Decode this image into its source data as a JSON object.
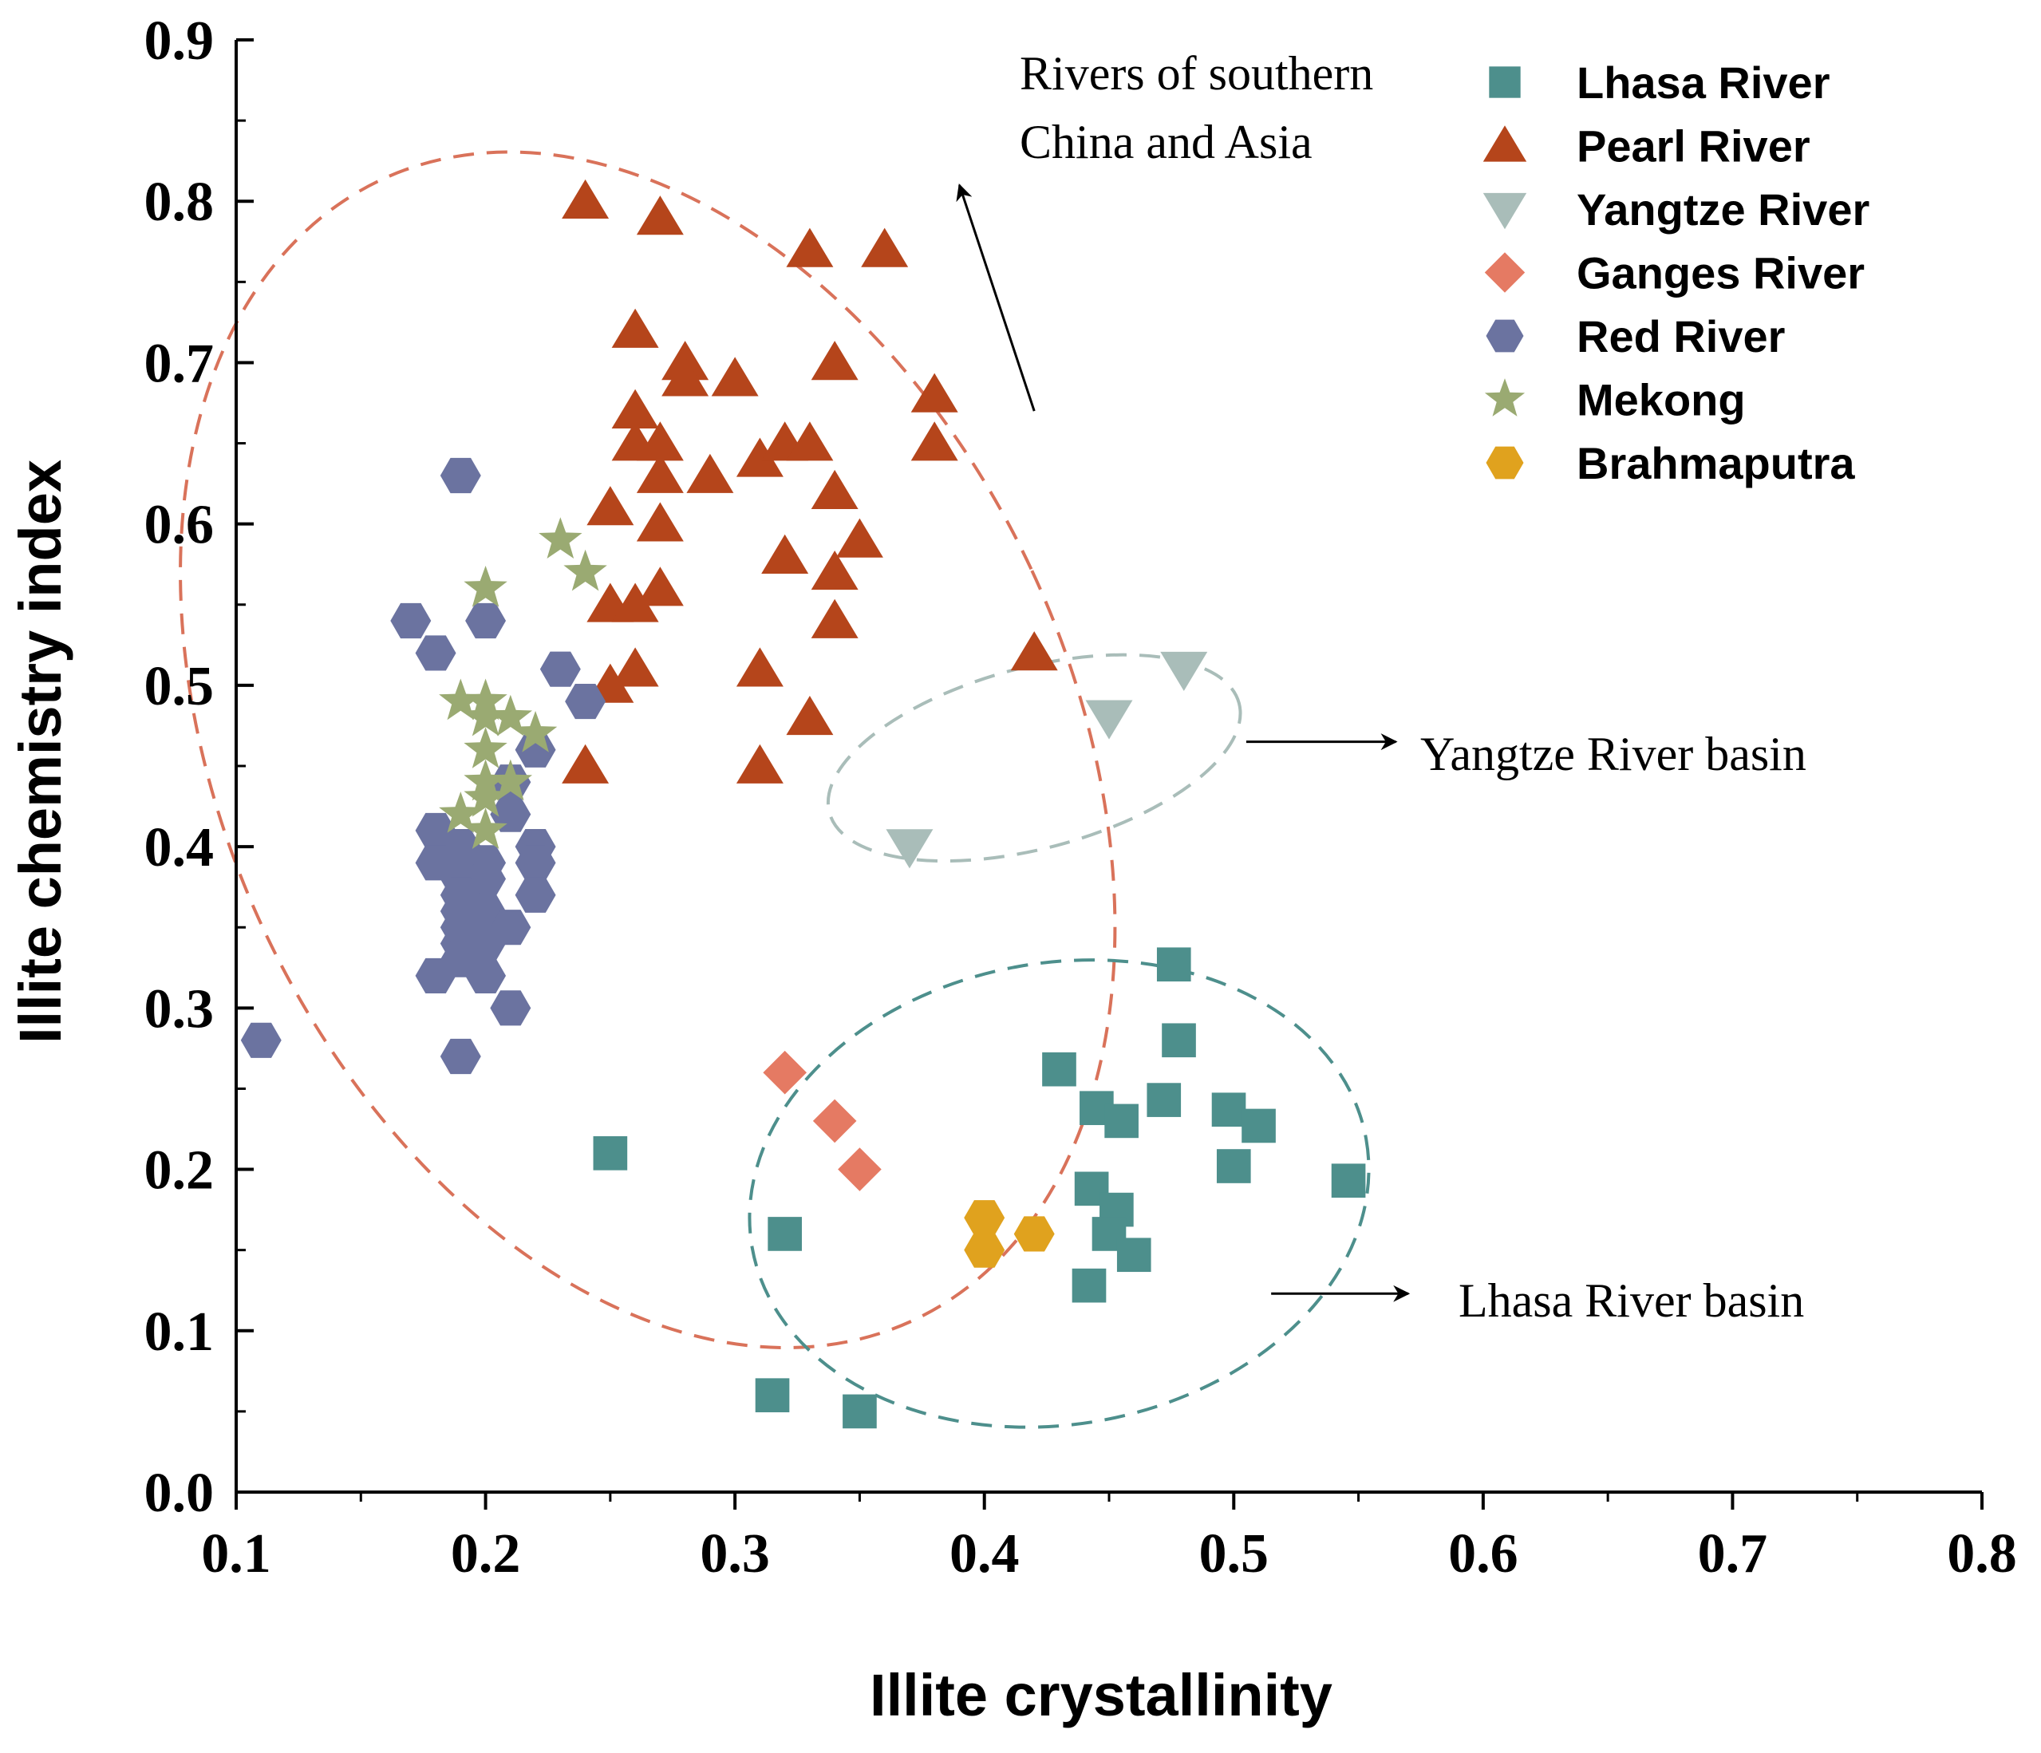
{
  "chart_data": {
    "type": "scatter",
    "title": "",
    "xlabel": "Illite crystallinity",
    "ylabel": "Illite chemistry index",
    "xlim": [
      0.1,
      0.8
    ],
    "ylim": [
      0.0,
      0.9
    ],
    "xticks": [
      0.1,
      0.2,
      0.3,
      0.4,
      0.5,
      0.6,
      0.7,
      0.8
    ],
    "yticks": [
      0.0,
      0.1,
      0.2,
      0.3,
      0.4,
      0.5,
      0.6,
      0.7,
      0.8,
      0.9
    ],
    "xtick_labels": [
      "0.1",
      "0.2",
      "0.3",
      "0.4",
      "0.5",
      "0.6",
      "0.7",
      "0.8"
    ],
    "ytick_labels": [
      "0.0",
      "0.1",
      "0.2",
      "0.3",
      "0.4",
      "0.5",
      "0.6",
      "0.7",
      "0.8",
      "0.9"
    ],
    "grid": false,
    "legend_position": "top-right",
    "series": [
      {
        "name": "Lhasa River",
        "marker": "square",
        "color": "#4D8F8C",
        "points": [
          [
            0.25,
            0.21
          ],
          [
            0.32,
            0.16
          ],
          [
            0.315,
            0.06
          ],
          [
            0.35,
            0.05
          ],
          [
            0.43,
            0.262
          ],
          [
            0.445,
            0.238
          ],
          [
            0.455,
            0.23
          ],
          [
            0.472,
            0.243
          ],
          [
            0.476,
            0.327
          ],
          [
            0.478,
            0.28
          ],
          [
            0.498,
            0.237
          ],
          [
            0.51,
            0.227
          ],
          [
            0.5,
            0.202
          ],
          [
            0.546,
            0.193
          ],
          [
            0.443,
            0.188
          ],
          [
            0.453,
            0.175
          ],
          [
            0.45,
            0.16
          ],
          [
            0.46,
            0.147
          ],
          [
            0.442,
            0.128
          ]
        ]
      },
      {
        "name": "Pearl River",
        "marker": "triangle-up",
        "color": "#B5451B",
        "points": [
          [
            0.24,
            0.8
          ],
          [
            0.27,
            0.79
          ],
          [
            0.33,
            0.77
          ],
          [
            0.36,
            0.77
          ],
          [
            0.26,
            0.72
          ],
          [
            0.28,
            0.7
          ],
          [
            0.28,
            0.69
          ],
          [
            0.3,
            0.69
          ],
          [
            0.34,
            0.7
          ],
          [
            0.38,
            0.68
          ],
          [
            0.26,
            0.67
          ],
          [
            0.26,
            0.65
          ],
          [
            0.27,
            0.65
          ],
          [
            0.31,
            0.64
          ],
          [
            0.32,
            0.65
          ],
          [
            0.33,
            0.65
          ],
          [
            0.38,
            0.65
          ],
          [
            0.27,
            0.63
          ],
          [
            0.29,
            0.63
          ],
          [
            0.34,
            0.62
          ],
          [
            0.25,
            0.61
          ],
          [
            0.27,
            0.6
          ],
          [
            0.35,
            0.59
          ],
          [
            0.32,
            0.58
          ],
          [
            0.34,
            0.57
          ],
          [
            0.27,
            0.56
          ],
          [
            0.25,
            0.55
          ],
          [
            0.26,
            0.55
          ],
          [
            0.34,
            0.54
          ],
          [
            0.42,
            0.52
          ],
          [
            0.26,
            0.51
          ],
          [
            0.31,
            0.51
          ],
          [
            0.25,
            0.5
          ],
          [
            0.33,
            0.48
          ],
          [
            0.24,
            0.45
          ],
          [
            0.31,
            0.45
          ]
        ]
      },
      {
        "name": "Yangtze River",
        "marker": "triangle-down",
        "color": "#A9BDB9",
        "points": [
          [
            0.48,
            0.51
          ],
          [
            0.45,
            0.48
          ],
          [
            0.37,
            0.4
          ]
        ]
      },
      {
        "name": "Ganges River",
        "marker": "diamond",
        "color": "#E57A63",
        "points": [
          [
            0.32,
            0.26
          ],
          [
            0.34,
            0.23
          ],
          [
            0.35,
            0.2
          ]
        ]
      },
      {
        "name": "Red River",
        "marker": "hexagon",
        "color": "#6B73A0",
        "points": [
          [
            0.19,
            0.63
          ],
          [
            0.17,
            0.54
          ],
          [
            0.2,
            0.54
          ],
          [
            0.18,
            0.52
          ],
          [
            0.23,
            0.51
          ],
          [
            0.24,
            0.49
          ],
          [
            0.22,
            0.46
          ],
          [
            0.21,
            0.44
          ],
          [
            0.21,
            0.42
          ],
          [
            0.18,
            0.41
          ],
          [
            0.19,
            0.4
          ],
          [
            0.22,
            0.4
          ],
          [
            0.18,
            0.39
          ],
          [
            0.2,
            0.39
          ],
          [
            0.22,
            0.39
          ],
          [
            0.19,
            0.38
          ],
          [
            0.2,
            0.38
          ],
          [
            0.19,
            0.37
          ],
          [
            0.22,
            0.37
          ],
          [
            0.19,
            0.36
          ],
          [
            0.2,
            0.36
          ],
          [
            0.19,
            0.35
          ],
          [
            0.21,
            0.35
          ],
          [
            0.19,
            0.34
          ],
          [
            0.2,
            0.34
          ],
          [
            0.19,
            0.33
          ],
          [
            0.18,
            0.32
          ],
          [
            0.2,
            0.32
          ],
          [
            0.21,
            0.3
          ],
          [
            0.11,
            0.28
          ],
          [
            0.19,
            0.27
          ]
        ]
      },
      {
        "name": "Mekong",
        "marker": "star",
        "color": "#9AAA72",
        "points": [
          [
            0.23,
            0.59
          ],
          [
            0.24,
            0.57
          ],
          [
            0.2,
            0.56
          ],
          [
            0.19,
            0.49
          ],
          [
            0.2,
            0.49
          ],
          [
            0.2,
            0.48
          ],
          [
            0.21,
            0.48
          ],
          [
            0.22,
            0.47
          ],
          [
            0.2,
            0.46
          ],
          [
            0.2,
            0.44
          ],
          [
            0.21,
            0.44
          ],
          [
            0.2,
            0.43
          ],
          [
            0.19,
            0.42
          ],
          [
            0.2,
            0.41
          ]
        ]
      },
      {
        "name": "Brahmaputra",
        "marker": "hexagon",
        "color": "#E0A21E",
        "points": [
          [
            0.4,
            0.17
          ],
          [
            0.42,
            0.16
          ],
          [
            0.4,
            0.15
          ]
        ]
      }
    ],
    "annotations": [
      {
        "name": "rivers-of-southern-china",
        "lines": [
          "Rivers of southern",
          "China and Asia"
        ],
        "color": "#D9725A",
        "ellipse": {
          "cx": 0.265,
          "cy": 0.46,
          "rx": 0.17,
          "ry": 0.39,
          "angle": -25
        },
        "arrow_from": [
          0.42,
          0.67
        ],
        "arrow_to": [
          0.39,
          0.81
        ]
      },
      {
        "name": "yangtze-river-basin",
        "lines": [
          "Yangtze River basin"
        ],
        "color": "#A9BDB9",
        "ellipse": {
          "cx": 0.42,
          "cy": 0.455,
          "rx": 0.085,
          "ry": 0.056,
          "angle": -15
        },
        "arrow_from": [
          0.505,
          0.465
        ],
        "arrow_to": [
          0.565,
          0.465
        ]
      },
      {
        "name": "lhasa-river-basin",
        "lines": [
          "Lhasa River basin"
        ],
        "color": "#4D8F8C",
        "ellipse": {
          "cx": 0.43,
          "cy": 0.185,
          "rx": 0.125,
          "ry": 0.143,
          "angle": -10
        },
        "arrow_from": [
          0.515,
          0.123
        ],
        "arrow_to": [
          0.57,
          0.123
        ]
      }
    ]
  }
}
